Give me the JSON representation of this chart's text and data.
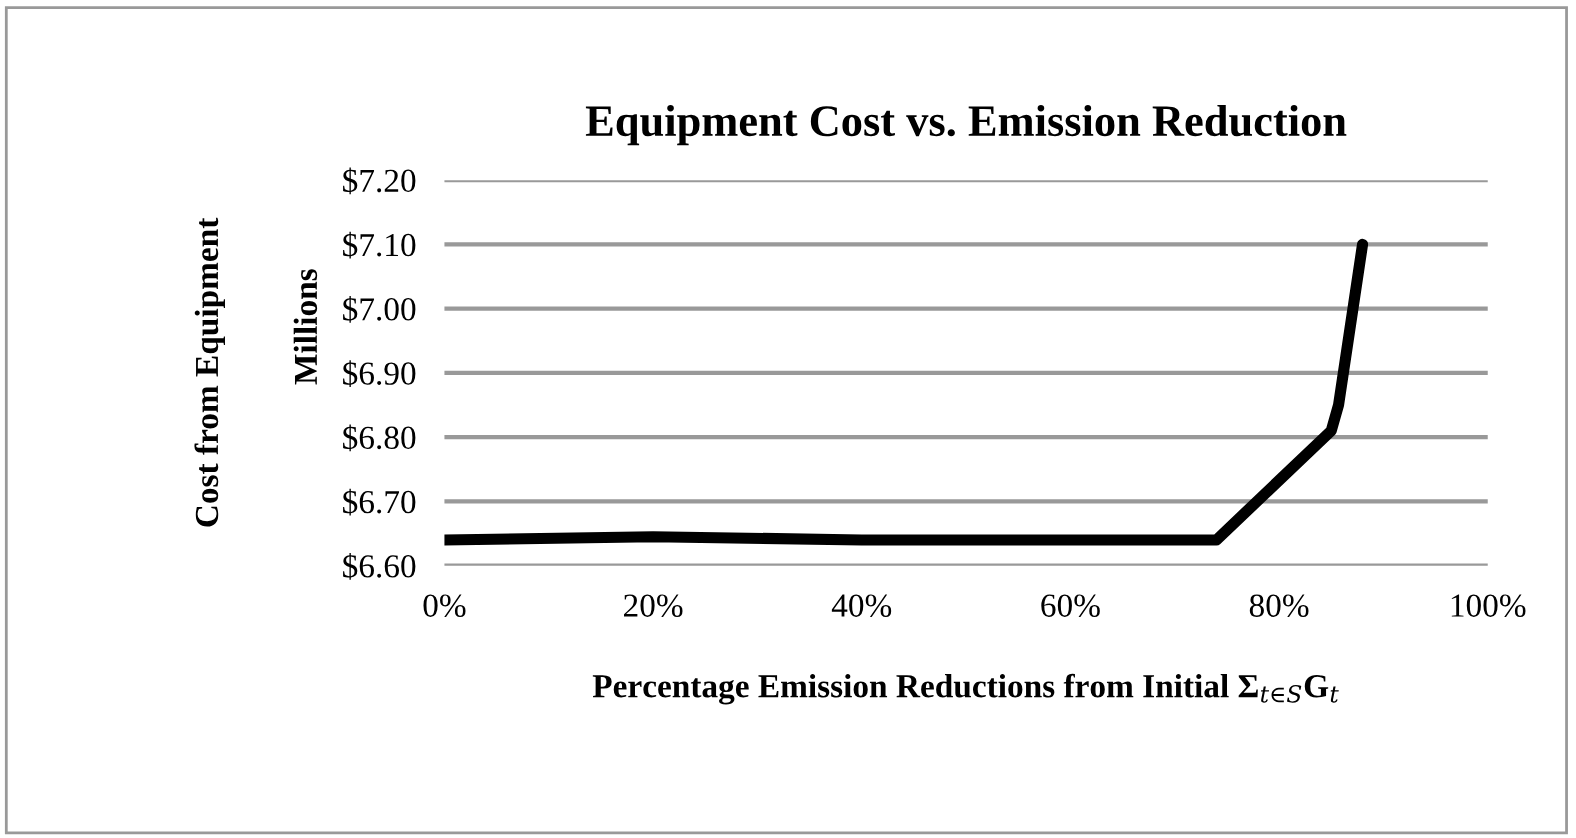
{
  "chart_data": {
    "type": "line",
    "title": "Equipment Cost vs. Emission Reduction",
    "xlabel": "Percentage Emission Reductions from Initial Σ$_{t∈S}$G$_{t}$",
    "ylabel": "Cost from Equipment",
    "annotations": [
      "Millions"
    ],
    "series": [
      {
        "color": "#000000",
        "x": [
          0,
          20,
          40,
          60,
          74,
          85,
          85.7,
          88
        ],
        "values": [
          6.64,
          6.645,
          6.64,
          6.64,
          6.64,
          6.81,
          6.85,
          7.1
        ]
      }
    ],
    "xlim": [
      0,
      100
    ],
    "xticks": [
      {
        "value": 0,
        "label": "0%"
      },
      {
        "value": 20,
        "label": "20%"
      },
      {
        "value": 40,
        "label": "40%"
      },
      {
        "value": 60,
        "label": "60%"
      },
      {
        "value": 80,
        "label": "80%"
      },
      {
        "value": 100,
        "label": "100%"
      }
    ],
    "ylim": [
      6.6,
      7.2
    ],
    "yticks": [
      {
        "value": 6.6,
        "label": "$6.60"
      },
      {
        "value": 6.7,
        "label": "$6.70"
      },
      {
        "value": 6.8,
        "label": "$6.80"
      },
      {
        "value": 6.9,
        "label": "$6.90"
      },
      {
        "value": 7.0,
        "label": "$7.00"
      },
      {
        "value": 7.1,
        "label": "$7.10"
      },
      {
        "value": 7.2,
        "label": "$7.20"
      }
    ],
    "grid": "y",
    "legend": false,
    "marker": "none",
    "line_style": "solid"
  }
}
